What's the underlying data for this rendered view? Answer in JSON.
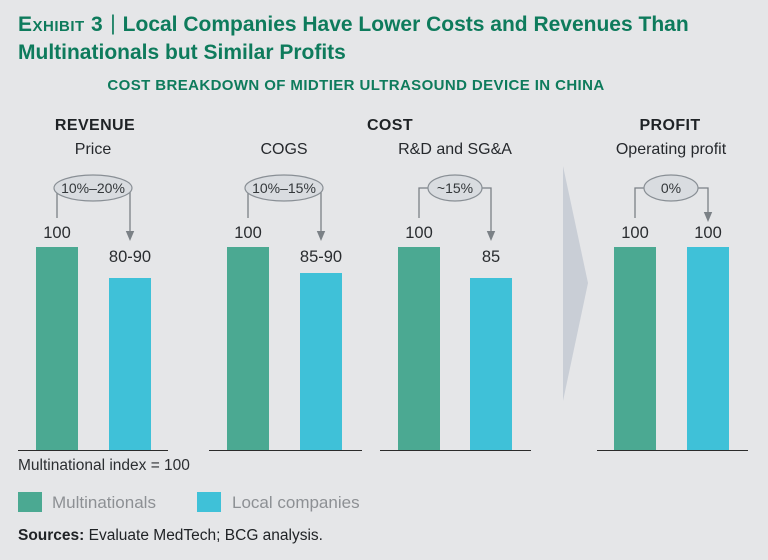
{
  "exhibit": {
    "label": "Exhibit 3",
    "separator": "|",
    "title": "Local Companies Have Lower Costs and Revenues Than Multinationals but Similar Profits",
    "subtitle": "COST BREAKDOWN OF MIDTIER ULTRASOUND DEVICE IN CHINA"
  },
  "chart_data": {
    "type": "bar",
    "title": "COST BREAKDOWN OF MIDTIER ULTRASOUND DEVICE IN CHINA",
    "sections": [
      "REVENUE",
      "COST",
      "PROFIT"
    ],
    "categories": [
      "Price",
      "COGS",
      "R&D and SG&A",
      "Operating profit"
    ],
    "series": [
      {
        "name": "Multinationals",
        "color": "#4ba992",
        "values": [
          100,
          100,
          100,
          100
        ],
        "labels": [
          "100",
          "100",
          "100",
          "100"
        ]
      },
      {
        "name": "Local companies",
        "color": "#3fc1d8",
        "values": [
          85,
          87.5,
          85,
          100
        ],
        "labels": [
          "80-90",
          "85-90",
          "85",
          "100"
        ]
      }
    ],
    "groups": [
      {
        "label": "Price",
        "section": "REVENUE",
        "delta": "10%–20%",
        "multinational_label": "100",
        "local_label": "80-90"
      },
      {
        "label": "COGS",
        "section": "COST",
        "delta": "10%–15%",
        "multinational_label": "100",
        "local_label": "85-90"
      },
      {
        "label": "R&D and SG&A",
        "section": "COST",
        "delta": "~15%",
        "multinational_label": "100",
        "local_label": "85"
      },
      {
        "label": "Operating profit",
        "section": "PROFIT",
        "delta": "0%",
        "multinational_label": "100",
        "local_label": "100"
      }
    ],
    "note": "Multinational index = 100",
    "ylim": [
      0,
      100
    ],
    "legend_position": "bottom-left",
    "grid": false
  },
  "legend": {
    "items": [
      {
        "label": "Multinationals",
        "color": "#4ba992"
      },
      {
        "label": "Local companies",
        "color": "#3fc1d8"
      }
    ]
  },
  "footer": {
    "sources_label": "Sources:",
    "sources_text": " Evaluate MedTech; BCG analysis."
  },
  "colors": {
    "background": "#e5e6e8",
    "heading": "#0e7b5c",
    "multinationals_bar": "#4ba992",
    "local_bar": "#3fc1d8",
    "annotation_bubble": "#d9dce0",
    "divider_arrow": "#c9ced6"
  }
}
